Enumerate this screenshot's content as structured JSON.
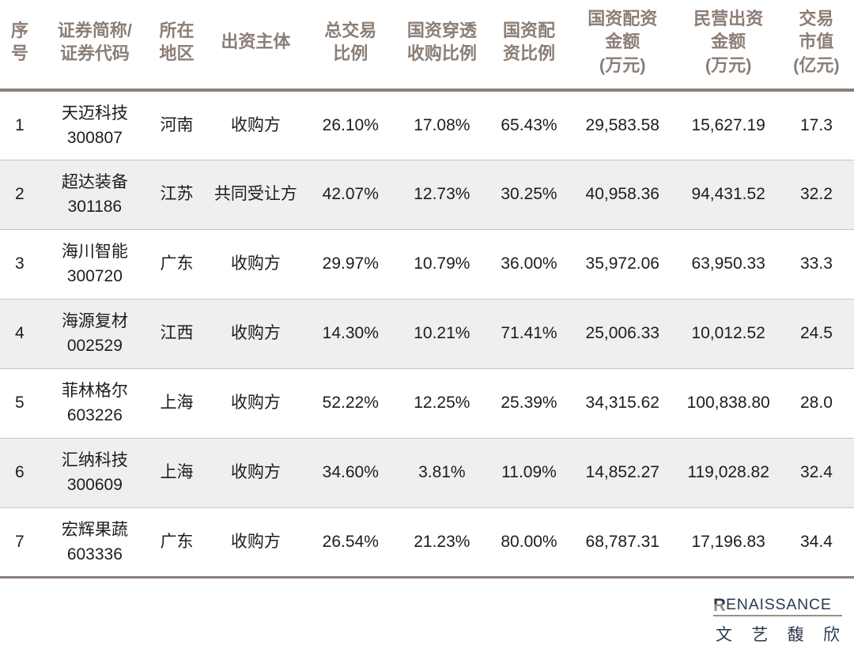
{
  "chart_data": {
    "type": "table",
    "title": "",
    "columns": [
      "序\n号",
      "证券简称/\n证券代码",
      "所在\n地区",
      "出资主体",
      "总交易\n比例",
      "国资穿透\n收购比例",
      "国资配\n资比例",
      "国资配资\n金额\n(万元)",
      "民营出资\n金额\n(万元)",
      "交易\n市值\n(亿元)"
    ],
    "rows": [
      {
        "no": "1",
        "name": "天迈科技",
        "code": "300807",
        "region": "河南",
        "entity": "收购方",
        "total_ratio": "26.10%",
        "penetration_ratio": "17.08%",
        "allocation_ratio": "65.43%",
        "allocation_amount": "29,583.58",
        "private_amount": "15,627.19",
        "market_cap": "17.3"
      },
      {
        "no": "2",
        "name": "超达装备",
        "code": "301186",
        "region": "江苏",
        "entity": "共同受让方",
        "total_ratio": "42.07%",
        "penetration_ratio": "12.73%",
        "allocation_ratio": "30.25%",
        "allocation_amount": "40,958.36",
        "private_amount": "94,431.52",
        "market_cap": "32.2"
      },
      {
        "no": "3",
        "name": "海川智能",
        "code": "300720",
        "region": "广东",
        "entity": "收购方",
        "total_ratio": "29.97%",
        "penetration_ratio": "10.79%",
        "allocation_ratio": "36.00%",
        "allocation_amount": "35,972.06",
        "private_amount": "63,950.33",
        "market_cap": "33.3"
      },
      {
        "no": "4",
        "name": "海源复材",
        "code": "002529",
        "region": "江西",
        "entity": "收购方",
        "total_ratio": "14.30%",
        "penetration_ratio": "10.21%",
        "allocation_ratio": "71.41%",
        "allocation_amount": "25,006.33",
        "private_amount": "10,012.52",
        "market_cap": "24.5"
      },
      {
        "no": "5",
        "name": "菲林格尔",
        "code": "603226",
        "region": "上海",
        "entity": "收购方",
        "total_ratio": "52.22%",
        "penetration_ratio": "12.25%",
        "allocation_ratio": "25.39%",
        "allocation_amount": "34,315.62",
        "private_amount": "100,838.80",
        "market_cap": "28.0"
      },
      {
        "no": "6",
        "name": "汇纳科技",
        "code": "300609",
        "region": "上海",
        "entity": "收购方",
        "total_ratio": "34.60%",
        "penetration_ratio": "3.81%",
        "allocation_ratio": "11.09%",
        "allocation_amount": "14,852.27",
        "private_amount": "119,028.82",
        "market_cap": "32.4"
      },
      {
        "no": "7",
        "name": "宏辉果蔬",
        "code": "603336",
        "region": "广东",
        "entity": "收购方",
        "total_ratio": "26.54%",
        "penetration_ratio": "21.23%",
        "allocation_ratio": "80.00%",
        "allocation_amount": "68,787.31",
        "private_amount": "17,196.83",
        "market_cap": "34.4"
      }
    ],
    "layout": {
      "header_text_color": "#8b7e76",
      "header_border_color": "#8b7f78",
      "row_alt_background": "#f0efee",
      "row_divider_color": "#cbc4bd",
      "body_text_color": "#1d1d1d",
      "grid": "horizontal-only"
    }
  },
  "brand": {
    "name_en": "RENAISSANCE",
    "name_en_rest": "ENAISSANCE",
    "logomark_letter": "R",
    "name_cn_chars": "文,艺,馥,欣",
    "navy_color": "#2b3950",
    "taupe_color": "#9c8e85"
  }
}
